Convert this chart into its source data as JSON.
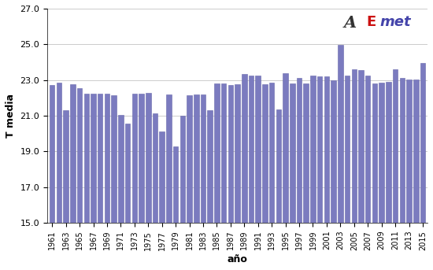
{
  "years": [
    1961,
    1962,
    1963,
    1964,
    1965,
    1966,
    1967,
    1968,
    1969,
    1970,
    1971,
    1972,
    1973,
    1974,
    1975,
    1976,
    1977,
    1978,
    1979,
    1980,
    1981,
    1982,
    1983,
    1984,
    1985,
    1986,
    1987,
    1988,
    1989,
    1990,
    1991,
    1992,
    1993,
    1994,
    1995,
    1996,
    1997,
    1998,
    1999,
    2000,
    2001,
    2002,
    2003,
    2004,
    2005,
    2006,
    2007,
    2008,
    2009,
    2010,
    2011,
    2012,
    2013,
    2014,
    2015
  ],
  "values": [
    22.7,
    22.85,
    21.3,
    22.75,
    22.55,
    22.25,
    22.25,
    22.25,
    22.25,
    22.15,
    21.05,
    20.55,
    22.25,
    22.25,
    22.3,
    21.15,
    20.1,
    22.2,
    19.3,
    21.0,
    22.15,
    22.2,
    22.2,
    21.3,
    22.8,
    22.8,
    22.7,
    22.75,
    23.35,
    23.25,
    23.25,
    22.75,
    22.85,
    21.35,
    23.4,
    22.8,
    23.1,
    22.8,
    23.25,
    23.2,
    23.2,
    23.0,
    24.95,
    23.25,
    23.6,
    23.55,
    23.25,
    22.8,
    22.85,
    22.9,
    23.6,
    23.1,
    23.05,
    23.05,
    23.95
  ],
  "bar_color": "#7b7bbf",
  "bar_edgecolor": "#6666aa",
  "ylim": [
    15.0,
    27.0
  ],
  "yticks": [
    15.0,
    17.0,
    19.0,
    21.0,
    23.0,
    25.0,
    27.0
  ],
  "xlabel": "año",
  "ylabel": "T media",
  "xtick_years": [
    1961,
    1963,
    1965,
    1967,
    1969,
    1971,
    1973,
    1975,
    1977,
    1979,
    1981,
    1983,
    1985,
    1987,
    1989,
    1991,
    1993,
    1995,
    1997,
    1999,
    2001,
    2003,
    2005,
    2007,
    2009,
    2011,
    2013,
    2015
  ],
  "grid_color": "#cccccc",
  "background_color": "#ffffff"
}
